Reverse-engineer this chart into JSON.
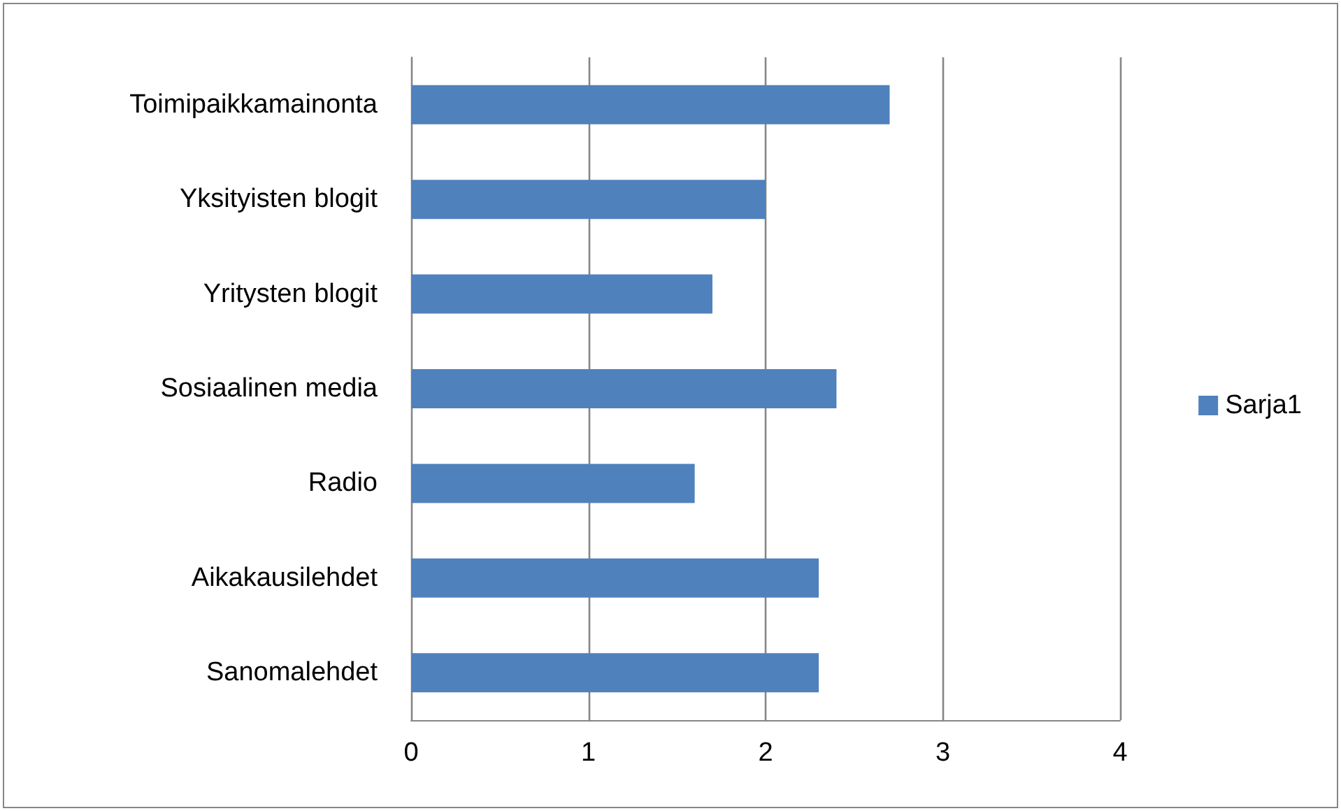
{
  "chart_data": {
    "type": "bar",
    "orientation": "horizontal",
    "categories": [
      "Toimipaikkamainonta",
      "Yksityisten blogit",
      "Yritysten blogit",
      "Sosiaalinen media",
      "Radio",
      "Aikakausilehdet",
      "Sanomalehdet"
    ],
    "series": [
      {
        "name": "Sarja1",
        "color": "#4f81bd",
        "values": [
          2.7,
          2.0,
          1.7,
          2.4,
          1.6,
          2.3,
          2.3
        ]
      }
    ],
    "xlim": [
      0,
      4
    ],
    "xticks": [
      0,
      1,
      2,
      3,
      4
    ],
    "grid": "x",
    "legend": "right"
  }
}
